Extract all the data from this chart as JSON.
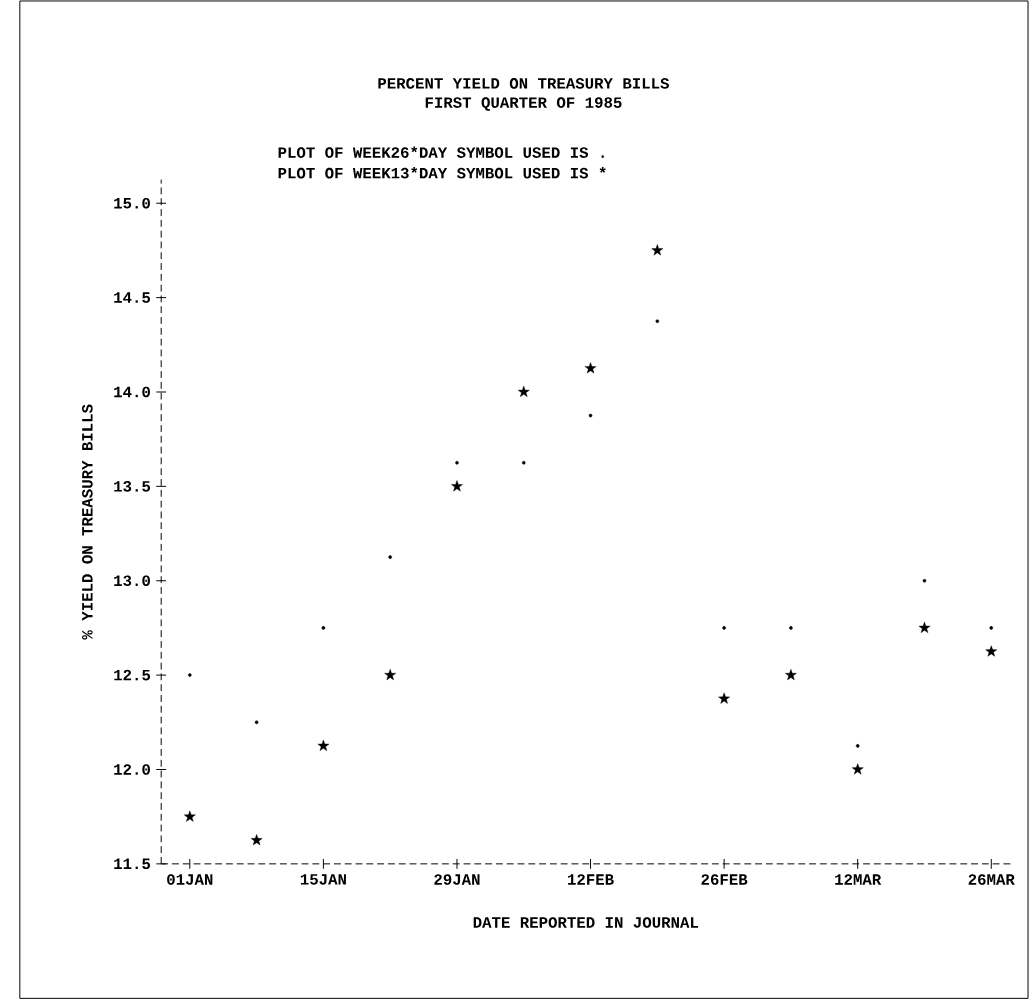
{
  "chart_data": {
    "type": "scatter",
    "title": "PERCENT YIELD ON TREASURY BILLS",
    "subtitle": "FIRST QUARTER OF 1985",
    "xlabel": "DATE REPORTED IN JOURNAL",
    "ylabel": "% YIELD ON TREASURY BILLS",
    "annotations": [
      "PLOT OF WEEK26*DAY    SYMBOL USED IS .",
      "PLOT OF WEEK13*DAY    SYMBOL USED IS *"
    ],
    "x": [
      "1985-01-01",
      "1985-01-08",
      "1985-01-15",
      "1985-01-22",
      "1985-01-29",
      "1985-02-05",
      "1985-02-12",
      "1985-02-19",
      "1985-02-26",
      "1985-03-05",
      "1985-03-12",
      "1985-03-19",
      "1985-03-26"
    ],
    "series": [
      {
        "color": "#000000",
        "marker": "circle",
        "values": [
          12.5,
          12.25,
          12.75,
          13.125,
          13.625,
          13.625,
          13.875,
          14.375,
          12.75,
          12.75,
          12.125,
          13.0,
          12.75
        ]
      },
      {
        "color": "#000000",
        "marker": "star",
        "values": [
          11.75,
          11.625,
          12.125,
          12.5,
          13.5,
          14.0,
          14.125,
          14.75,
          12.375,
          12.5,
          12.0,
          12.75,
          12.625
        ]
      }
    ],
    "xlim": [
      "1984-12-29",
      "1985-03-28"
    ],
    "xticks": [
      {
        "value": "1985-01-01",
        "label": "01JAN"
      },
      {
        "value": "1985-01-15",
        "label": "15JAN"
      },
      {
        "value": "1985-01-29",
        "label": "29JAN"
      },
      {
        "value": "1985-02-12",
        "label": "12FEB"
      },
      {
        "value": "1985-02-26",
        "label": "26FEB"
      },
      {
        "value": "1985-03-12",
        "label": "12MAR"
      },
      {
        "value": "1985-03-26",
        "label": "26MAR"
      }
    ],
    "ylim": [
      11.5,
      15.125
    ],
    "yticks": [
      {
        "value": 11.5,
        "label": "11.5"
      },
      {
        "value": 12,
        "label": "12.0"
      },
      {
        "value": 12.5,
        "label": "12.5"
      },
      {
        "value": 13,
        "label": "13.0"
      },
      {
        "value": 13.5,
        "label": "13.5"
      },
      {
        "value": 14,
        "label": "14.0"
      },
      {
        "value": 14.5,
        "label": "14.5"
      },
      {
        "value": 15,
        "label": "15.0"
      }
    ],
    "grid": false
  }
}
